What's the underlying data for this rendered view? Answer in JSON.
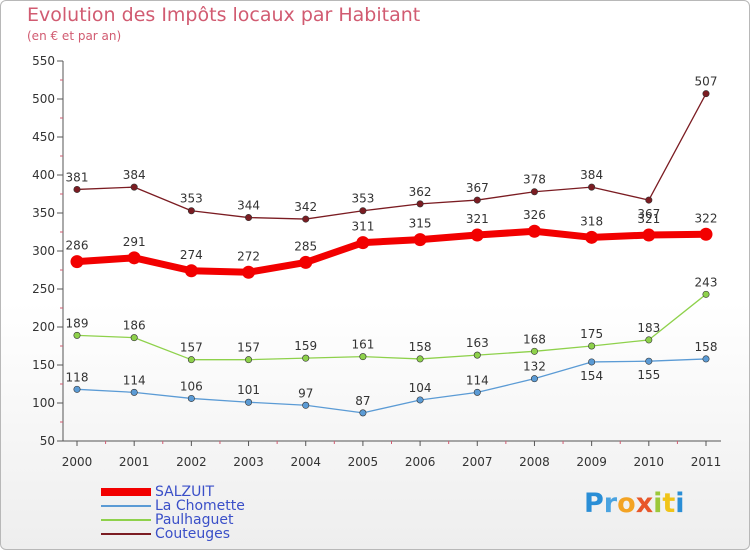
{
  "header": {
    "title": "Evolution des Impôts locaux par Habitant",
    "subtitle": "(en € et par an)"
  },
  "brand": {
    "letters": [
      "P",
      "r",
      "o",
      "x",
      "i",
      "t",
      "i"
    ]
  },
  "chart_data": {
    "type": "line",
    "title": "Evolution des Impôts locaux par Habitant",
    "subtitle": "(en € et par an)",
    "xlabel": "",
    "ylabel": "",
    "ylim": [
      50,
      550
    ],
    "yticks": [
      50,
      100,
      150,
      200,
      250,
      300,
      350,
      400,
      450,
      500,
      550
    ],
    "grid": false,
    "legend_position": "bottom-left",
    "categories": [
      "2000",
      "2001",
      "2002",
      "2003",
      "2004",
      "2005",
      "2006",
      "2007",
      "2008",
      "2009",
      "2010",
      "2011"
    ],
    "series": [
      {
        "name": "SALZUIT",
        "color": "#f20000",
        "values": [
          286,
          291,
          274,
          272,
          285,
          311,
          315,
          321,
          326,
          318,
          321,
          322
        ]
      },
      {
        "name": "La Chomette",
        "color": "#5b9bd5",
        "values": [
          118,
          114,
          106,
          101,
          97,
          87,
          104,
          114,
          132,
          154,
          155,
          158
        ]
      },
      {
        "name": "Paulhaguet",
        "color": "#8ed14b",
        "values": [
          189,
          186,
          157,
          157,
          159,
          161,
          158,
          163,
          168,
          175,
          183,
          243
        ]
      },
      {
        "name": "Couteuges",
        "color": "#7b1c22",
        "values": [
          381,
          384,
          353,
          344,
          342,
          353,
          362,
          367,
          378,
          384,
          367,
          507
        ]
      }
    ]
  }
}
